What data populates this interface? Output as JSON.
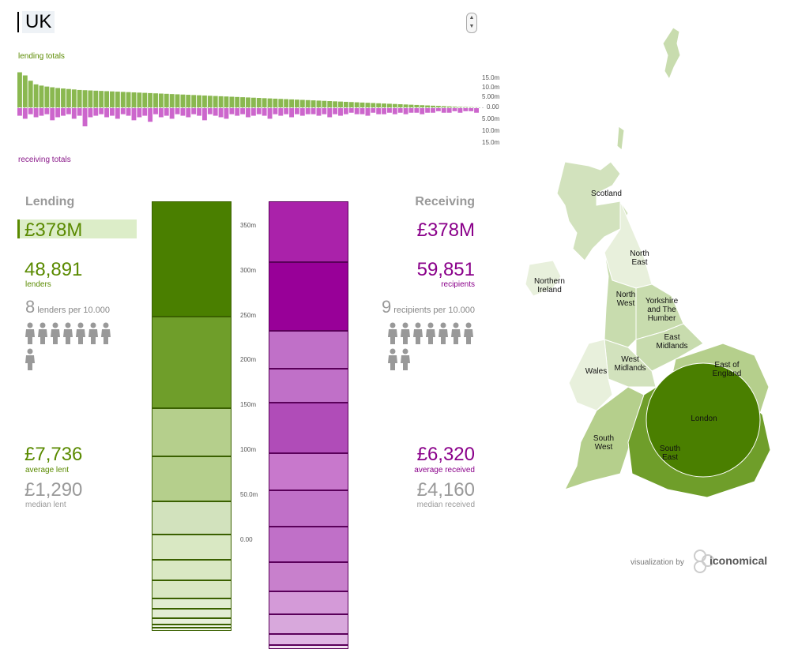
{
  "title": "UK",
  "top_chart": {
    "lending_label": "lending totals",
    "receiving_label": "receiving totals",
    "ticks_up": [
      "15.0m",
      "10.0m",
      "5.00m",
      "0.00"
    ],
    "ticks_down": [
      "5.00m",
      "10.0m",
      "15.0m"
    ],
    "lending_values": [
      14.5,
      13.2,
      11.0,
      9.5,
      9.0,
      8.6,
      8.3,
      8.0,
      7.8,
      7.6,
      7.4,
      7.2,
      7.1,
      7.0,
      6.9,
      6.8,
      6.7,
      6.6,
      6.5,
      6.4,
      6.3,
      6.2,
      6.1,
      6.0,
      5.9,
      5.8,
      5.7,
      5.6,
      5.5,
      5.4,
      5.3,
      5.2,
      5.1,
      5.0,
      4.9,
      4.8,
      4.7,
      4.6,
      4.5,
      4.4,
      4.3,
      4.2,
      4.1,
      4.0,
      3.9,
      3.8,
      3.7,
      3.6,
      3.5,
      3.4,
      3.3,
      3.2,
      3.1,
      3.0,
      2.9,
      2.8,
      2.7,
      2.6,
      2.5,
      2.4,
      2.3,
      2.2,
      2.1,
      2.0,
      1.9,
      1.8,
      1.7,
      1.6,
      1.5,
      1.4,
      1.3,
      1.2,
      1.1,
      1.0,
      0.9,
      0.8,
      0.7,
      0.6,
      0.5,
      0.4,
      0.3,
      0.2,
      0.15,
      0.1,
      0.05
    ],
    "receiving_values": [
      5,
      7,
      4,
      6,
      5,
      4,
      8,
      6,
      5,
      4,
      7,
      5,
      12,
      6,
      5,
      4,
      6,
      5,
      7,
      4,
      5,
      8,
      6,
      5,
      9,
      4,
      6,
      5,
      7,
      4,
      5,
      6,
      4,
      5,
      8,
      4,
      5,
      6,
      7,
      4,
      5,
      4,
      6,
      5,
      4,
      5,
      7,
      4,
      5,
      4,
      6,
      4,
      5,
      4,
      4,
      5,
      4,
      6,
      4,
      5,
      4,
      3,
      4,
      4,
      5,
      3,
      4,
      4,
      3,
      4,
      3,
      4,
      3,
      3,
      4,
      3,
      3,
      2,
      3,
      3,
      2,
      3,
      2,
      2,
      3
    ]
  },
  "lending": {
    "heading": "Lending",
    "total": "£378M",
    "count": "48,891",
    "count_label": "lenders",
    "per_value": "8",
    "per_label": "lenders per 10.000",
    "people_count": 8,
    "average": "£7,736",
    "average_label": "average lent",
    "median": "£1,290",
    "median_label": "median lent"
  },
  "receiving": {
    "heading": "Receiving",
    "total": "£378M",
    "count": "59,851",
    "count_label": "recipients",
    "per_value": "9",
    "per_label": "recipients per 10.000",
    "people_count": 9,
    "average": "£6,320",
    "average_label": "average received",
    "median": "£4,160",
    "median_label": "median received"
  },
  "stack_axis": {
    "ticks": [
      "350m",
      "300m",
      "250m",
      "200m",
      "150m",
      "100m",
      "50.0m",
      "0.00"
    ],
    "max": 378
  },
  "chart_data": {
    "type": "bar",
    "title": "",
    "ylabel": "",
    "ylim": [
      0,
      378
    ],
    "series": [
      {
        "values": [
          128,
          102,
          54,
          50,
          37,
          28,
          23,
          20,
          12,
          10,
          7,
          4,
          3
        ]
      },
      {
        "values": [
          68,
          76,
          42,
          38,
          56,
          42,
          40,
          40,
          32,
          26,
          22,
          12,
          4
        ]
      }
    ]
  },
  "map": {
    "regions": [
      "Scotland",
      "North East",
      "Northern Ireland",
      "North West",
      "Yorkshire and The Humber",
      "East Midlands",
      "West Midlands",
      "Wales",
      "East of England",
      "London",
      "South West",
      "South East"
    ]
  },
  "credit": {
    "text": "visualization by",
    "brand": "iconomical"
  },
  "colors": {
    "green_dark": "#4a7f00",
    "green_mid": "#6f9e2a",
    "green_light": "#b5cf8c",
    "green_pale": "#d9e8c3",
    "purple_dark": "#980098",
    "purple_mid": "#c070c8",
    "purple_light": "#e0b6e4"
  }
}
